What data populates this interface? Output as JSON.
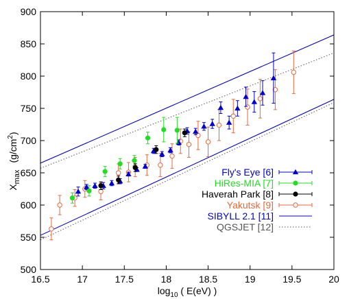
{
  "chart_data": {
    "type": "scatter",
    "xlabel": {
      "base": "log",
      "sub": "10",
      "rest": " ( E(eV) )"
    },
    "ylabel": {
      "main": "X",
      "sub": "max",
      "unit": "(g/cm",
      "sup": "2",
      "close": ")"
    },
    "xlim": [
      16.5,
      20
    ],
    "ylim": [
      500,
      900
    ],
    "xticks": [
      "16.5",
      "17",
      "17.5",
      "18",
      "18.5",
      "19",
      "19.5",
      "20"
    ],
    "yticks": [
      "500",
      "550",
      "600",
      "650",
      "700",
      "750",
      "800",
      "850",
      "900"
    ],
    "grid": false,
    "legend_position": "bottom-right",
    "colors": {
      "flys_eye": "#0000cc",
      "hires": "#22dd22",
      "haverah": "#000000",
      "yakutsk": "#e8683a",
      "sibyll": "#0000cc",
      "qgsjet": "#555555"
    },
    "series": [
      {
        "key": "flys_eye",
        "name": "Fly's Eye [6]",
        "marker": "triangle",
        "points": [
          {
            "x": 16.95,
            "y": 621,
            "lo": 614,
            "hi": 628
          },
          {
            "x": 17.05,
            "y": 628,
            "lo": 624,
            "hi": 632
          },
          {
            "x": 17.15,
            "y": 630,
            "lo": 626,
            "hi": 634
          },
          {
            "x": 17.25,
            "y": 630,
            "lo": 625,
            "hi": 635
          },
          {
            "x": 17.35,
            "y": 634,
            "lo": 630,
            "hi": 638
          },
          {
            "x": 17.45,
            "y": 637,
            "lo": 633,
            "hi": 641
          },
          {
            "x": 17.55,
            "y": 648,
            "lo": 645,
            "hi": 651
          },
          {
            "x": 17.65,
            "y": 655,
            "lo": 652,
            "hi": 658
          },
          {
            "x": 17.75,
            "y": 660,
            "lo": 657,
            "hi": 663
          },
          {
            "x": 17.85,
            "y": 684,
            "lo": 680,
            "hi": 688
          },
          {
            "x": 17.95,
            "y": 679,
            "lo": 675,
            "hi": 683
          },
          {
            "x": 18.05,
            "y": 685,
            "lo": 681,
            "hi": 689
          },
          {
            "x": 18.15,
            "y": 697,
            "lo": 693,
            "hi": 701
          },
          {
            "x": 18.25,
            "y": 715,
            "lo": 710,
            "hi": 720
          },
          {
            "x": 18.35,
            "y": 714,
            "lo": 709,
            "hi": 719
          },
          {
            "x": 18.45,
            "y": 722,
            "lo": 716,
            "hi": 728
          },
          {
            "x": 18.55,
            "y": 726,
            "lo": 719,
            "hi": 733
          },
          {
            "x": 18.65,
            "y": 751,
            "lo": 742,
            "hi": 760
          },
          {
            "x": 18.75,
            "y": 728,
            "lo": 718,
            "hi": 738
          },
          {
            "x": 18.85,
            "y": 750,
            "lo": 738,
            "hi": 762
          },
          {
            "x": 18.95,
            "y": 768,
            "lo": 753,
            "hi": 783
          },
          {
            "x": 19.05,
            "y": 760,
            "lo": 744,
            "hi": 776
          },
          {
            "x": 19.15,
            "y": 774,
            "lo": 755,
            "hi": 793
          },
          {
            "x": 19.28,
            "y": 797,
            "lo": 758,
            "hi": 836
          }
        ]
      },
      {
        "key": "hires",
        "name": "HiRes-MIA [7]",
        "marker": "circle",
        "points": [
          {
            "x": 16.88,
            "y": 611,
            "lo": 603,
            "hi": 619
          },
          {
            "x": 17.08,
            "y": 622,
            "lo": 614,
            "hi": 630
          },
          {
            "x": 17.27,
            "y": 652,
            "lo": 644,
            "hi": 660
          },
          {
            "x": 17.45,
            "y": 664,
            "lo": 656,
            "hi": 672
          },
          {
            "x": 17.62,
            "y": 669,
            "lo": 661,
            "hi": 677
          },
          {
            "x": 17.78,
            "y": 704,
            "lo": 695,
            "hi": 713
          },
          {
            "x": 17.97,
            "y": 717,
            "lo": 698,
            "hi": 736
          },
          {
            "x": 18.13,
            "y": 716,
            "lo": 696,
            "hi": 736
          }
        ]
      },
      {
        "key": "haverah",
        "name": "Haverah Park [8]",
        "marker": "circle",
        "points": [
          {
            "x": 17.22,
            "y": 630,
            "lo": 624,
            "hi": 636
          },
          {
            "x": 17.43,
            "y": 639,
            "lo": 633,
            "hi": 645
          },
          {
            "x": 17.63,
            "y": 658,
            "lo": 652,
            "hi": 664
          },
          {
            "x": 17.88,
            "y": 686,
            "lo": 680,
            "hi": 692
          },
          {
            "x": 18.22,
            "y": 712,
            "lo": 706,
            "hi": 718
          }
        ]
      },
      {
        "key": "yakutsk",
        "name": "Yakutsk [9]",
        "marker": "circle-open",
        "points": [
          {
            "x": 16.63,
            "y": 563,
            "lo": 546,
            "hi": 580
          },
          {
            "x": 16.73,
            "y": 600,
            "lo": 585,
            "hi": 615
          },
          {
            "x": 16.91,
            "y": 611,
            "lo": 598,
            "hi": 624
          },
          {
            "x": 17.03,
            "y": 625,
            "lo": 612,
            "hi": 638
          },
          {
            "x": 17.22,
            "y": 621,
            "lo": 608,
            "hi": 634
          },
          {
            "x": 17.43,
            "y": 650,
            "lo": 636,
            "hi": 664
          },
          {
            "x": 17.55,
            "y": 651,
            "lo": 636,
            "hi": 666
          },
          {
            "x": 17.63,
            "y": 659,
            "lo": 644,
            "hi": 674
          },
          {
            "x": 17.77,
            "y": 662,
            "lo": 646,
            "hi": 678
          },
          {
            "x": 17.93,
            "y": 662,
            "lo": 644,
            "hi": 680
          },
          {
            "x": 18.07,
            "y": 676,
            "lo": 657,
            "hi": 695
          },
          {
            "x": 18.17,
            "y": 699,
            "lo": 680,
            "hi": 718
          },
          {
            "x": 18.27,
            "y": 694,
            "lo": 674,
            "hi": 714
          },
          {
            "x": 18.38,
            "y": 708,
            "lo": 686,
            "hi": 730
          },
          {
            "x": 18.5,
            "y": 698,
            "lo": 675,
            "hi": 721
          },
          {
            "x": 18.63,
            "y": 724,
            "lo": 700,
            "hi": 748
          },
          {
            "x": 18.8,
            "y": 738,
            "lo": 712,
            "hi": 764
          },
          {
            "x": 18.97,
            "y": 752,
            "lo": 724,
            "hi": 780
          },
          {
            "x": 19.12,
            "y": 765,
            "lo": 735,
            "hi": 795
          },
          {
            "x": 19.3,
            "y": 779,
            "lo": 748,
            "hi": 810
          },
          {
            "x": 19.52,
            "y": 806,
            "lo": 773,
            "hi": 839
          }
        ]
      }
    ],
    "lines": [
      {
        "key": "sibyll",
        "name": "SIBYLL 2.1 [11]",
        "style": "solid",
        "segments": [
          [
            [
              16.5,
              665
            ],
            [
              20,
              864
            ]
          ],
          [
            [
              16.5,
              553
            ],
            [
              20,
              764
            ]
          ]
        ]
      },
      {
        "key": "qgsjet",
        "name": "QGSJET [12]",
        "style": "dotted",
        "segments": [
          [
            [
              16.5,
              657
            ],
            [
              20,
              836
            ]
          ],
          [
            [
              16.5,
              546
            ],
            [
              20,
              759
            ]
          ]
        ]
      }
    ]
  }
}
